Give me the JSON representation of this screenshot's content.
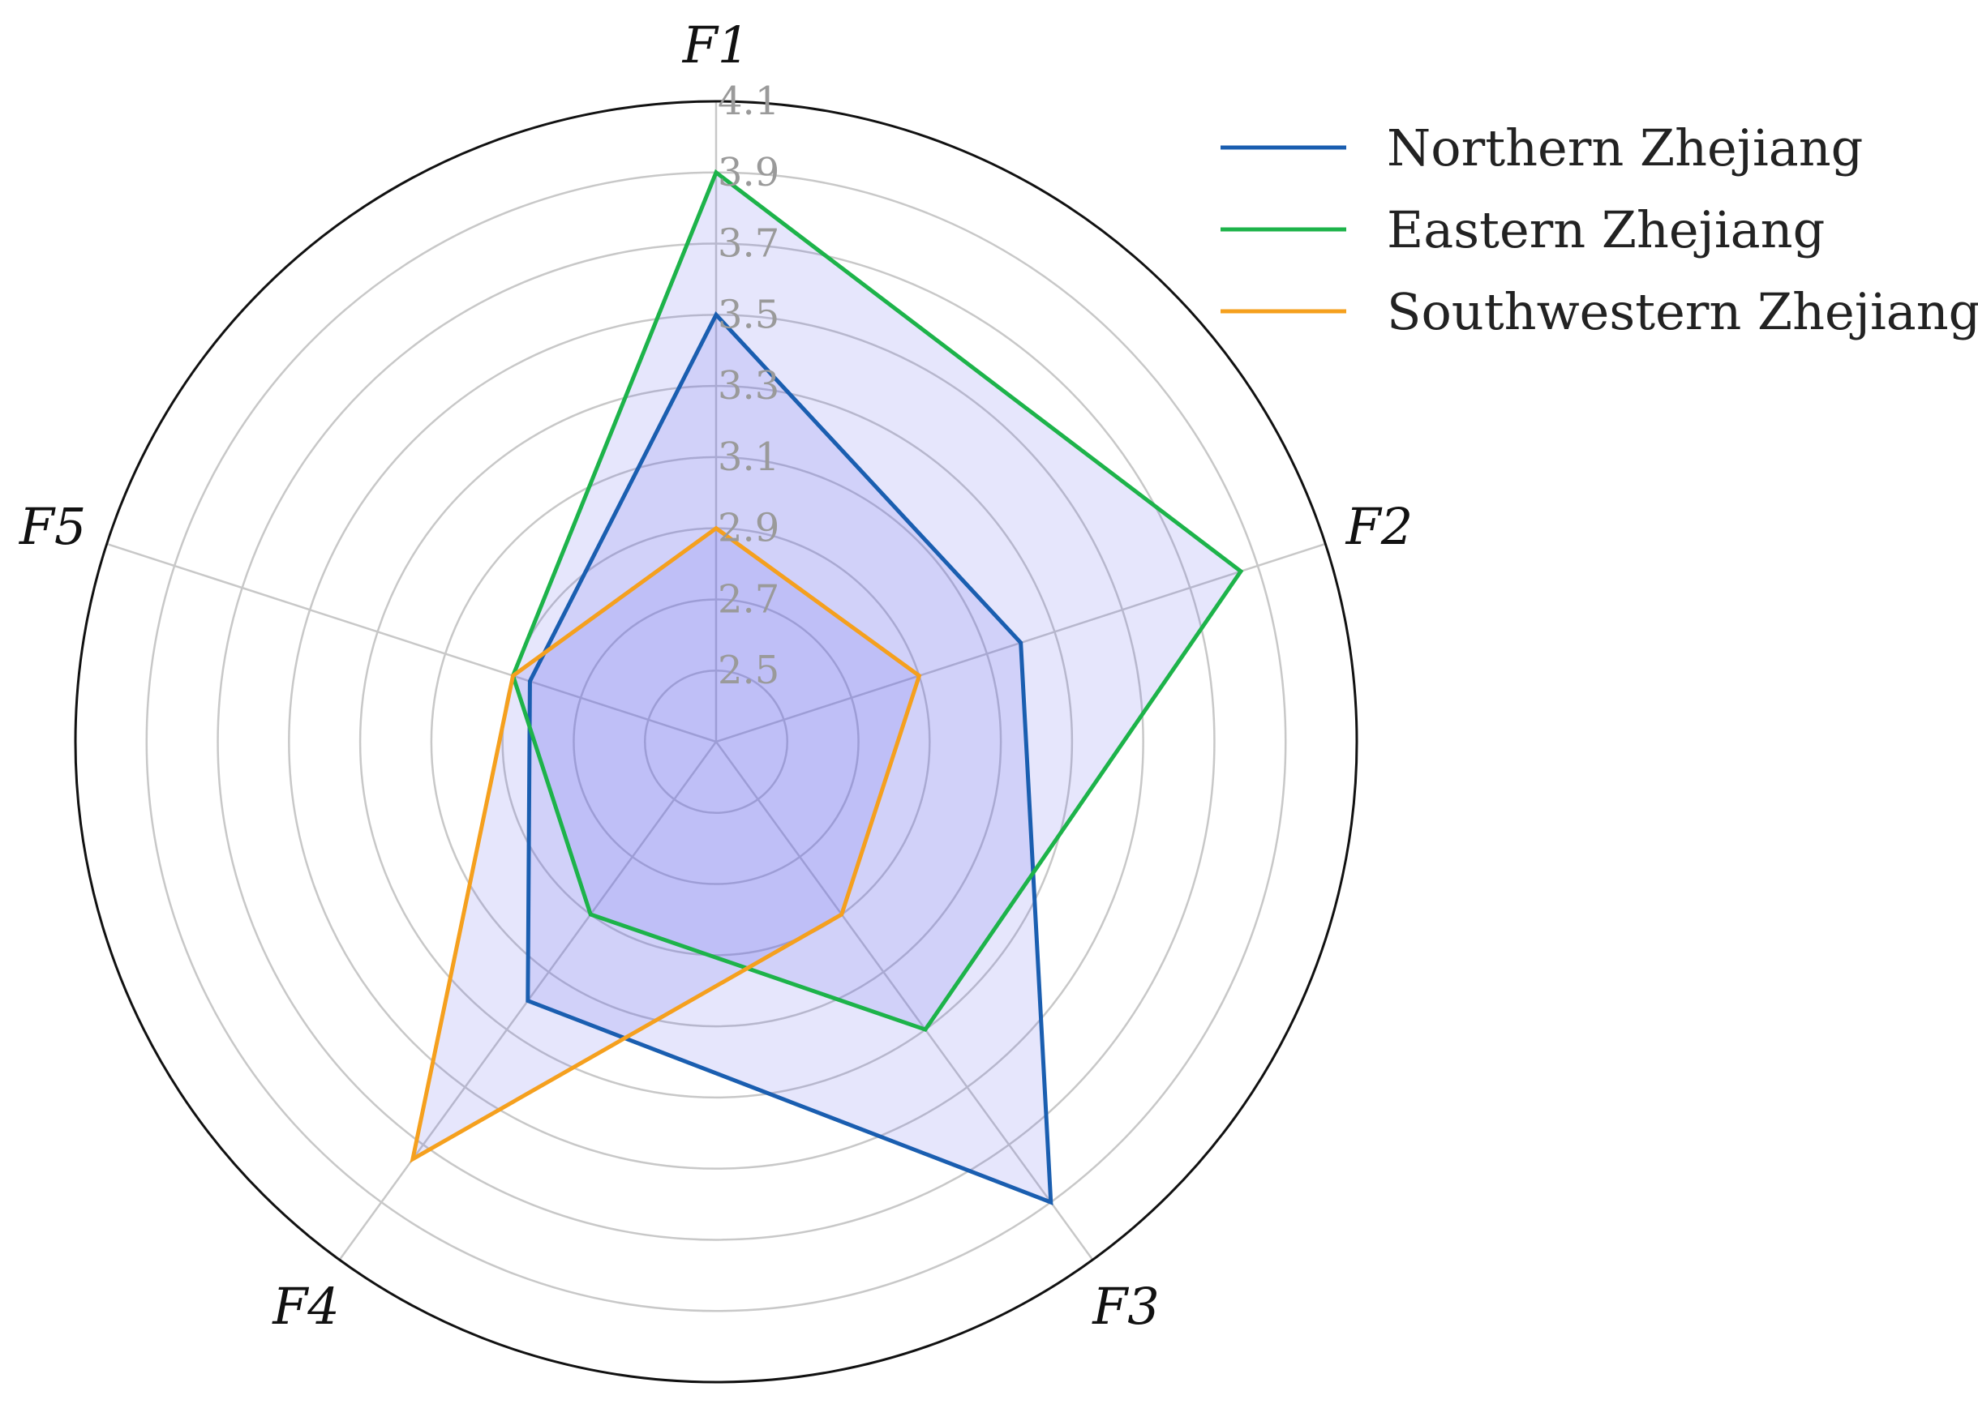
{
  "chart_data": {
    "type": "radar",
    "title": "",
    "axes": [
      "F1",
      "F2",
      "F3",
      "F4",
      "F5"
    ],
    "rlim": [
      2.3,
      4.1
    ],
    "rticks": [
      "2.5",
      "2.7",
      "2.9",
      "3.1",
      "3.3",
      "3.5",
      "3.7",
      "3.9",
      "4.1"
    ],
    "grid": true,
    "legend_position": "top-right",
    "fill_color": "#6666ee",
    "series": [
      {
        "name": "Northern Zhejiang",
        "color": "#1a5eb0",
        "values": [
          3.5,
          3.2,
          3.9,
          3.2,
          2.85
        ]
      },
      {
        "name": "Eastern Zhejiang",
        "color": "#1db34a",
        "values": [
          3.9,
          3.85,
          3.3,
          2.9,
          2.9
        ]
      },
      {
        "name": "Southwestern Zhejiang",
        "color": "#f5a01e",
        "values": [
          2.9,
          2.9,
          2.9,
          3.75,
          2.9
        ]
      }
    ]
  }
}
